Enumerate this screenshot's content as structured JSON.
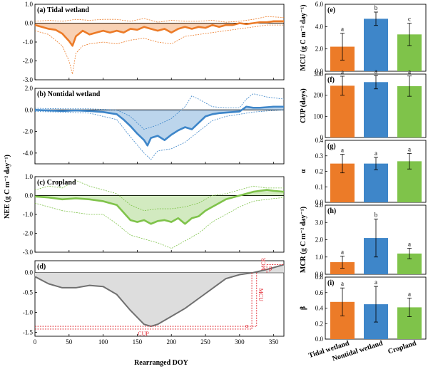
{
  "figure": {
    "y_axis_label_left": "NEE (g C m⁻² day⁻¹)",
    "x_axis_label_left": "Rearranged DOY",
    "left_x_ticks": [
      "0",
      "50",
      "100",
      "150",
      "200",
      "250",
      "300",
      "350"
    ]
  },
  "chart_data": [
    {
      "type": "line",
      "panel": "(a)",
      "title": "Tidal wetland",
      "color": "#ec7b28",
      "ylim": [
        -3.0,
        1.0
      ],
      "yticks": [
        "1.0",
        "0.0",
        "-1.0",
        "-2.0",
        "-3.0"
      ],
      "xlim": [
        0,
        365
      ],
      "series": [
        {
          "values_kind": "mean",
          "x": [
            0,
            10,
            20,
            30,
            40,
            50,
            55,
            60,
            65,
            70,
            80,
            90,
            100,
            110,
            120,
            130,
            140,
            150,
            160,
            170,
            180,
            190,
            200,
            210,
            220,
            230,
            240,
            250,
            260,
            270,
            280,
            290,
            300,
            310,
            320,
            330,
            340,
            350,
            365
          ],
          "y": [
            -0.1,
            -0.2,
            -0.3,
            -0.35,
            -0.55,
            -0.95,
            -1.2,
            -0.7,
            -0.55,
            -0.4,
            -0.6,
            -0.5,
            -0.4,
            -0.5,
            -0.4,
            -0.5,
            -0.3,
            -0.35,
            -0.2,
            -0.3,
            -0.4,
            -0.3,
            -0.5,
            -0.3,
            -0.2,
            -0.3,
            -0.2,
            -0.25,
            -0.1,
            -0.2,
            -0.1,
            -0.1,
            0.0,
            -0.05,
            0.0,
            0.05,
            0.05,
            0.1,
            0.1
          ]
        },
        {
          "values_kind": "upper",
          "x": [
            0,
            20,
            40,
            60,
            80,
            100,
            120,
            140,
            160,
            180,
            200,
            220,
            240,
            260,
            280,
            300,
            320,
            340,
            365
          ],
          "y": [
            0.1,
            0.15,
            0.1,
            0.2,
            0.15,
            0.2,
            0.2,
            0.1,
            0.25,
            0.05,
            0.15,
            0.1,
            0.1,
            0.15,
            0.05,
            0.1,
            0.2,
            0.35,
            0.3
          ]
        },
        {
          "values_kind": "lower",
          "x": [
            0,
            20,
            40,
            50,
            55,
            60,
            70,
            80,
            100,
            120,
            140,
            160,
            180,
            200,
            220,
            240,
            260,
            280,
            300,
            320,
            340,
            365
          ],
          "y": [
            -0.4,
            -0.6,
            -1.2,
            -2.0,
            -2.7,
            -1.6,
            -1.2,
            -1.1,
            -1.0,
            -1.1,
            -0.9,
            -0.8,
            -1.0,
            -1.1,
            -0.7,
            -0.6,
            -0.5,
            -0.4,
            -0.3,
            -0.2,
            -0.1,
            -0.1
          ]
        }
      ]
    },
    {
      "type": "line",
      "panel": "(b)",
      "title": "Nontidal wetland",
      "color": "#3e86c9",
      "ylim": [
        -5.0,
        2.0
      ],
      "yticks": [
        "2.0",
        "0.0",
        "-2.0",
        "-4.0"
      ],
      "xlim": [
        0,
        365
      ],
      "series": [
        {
          "values_kind": "mean",
          "x": [
            0,
            20,
            40,
            60,
            80,
            100,
            120,
            130,
            140,
            150,
            160,
            165,
            170,
            180,
            190,
            200,
            210,
            220,
            230,
            240,
            250,
            260,
            270,
            280,
            290,
            300,
            310,
            320,
            330,
            340,
            350,
            365
          ],
          "y": [
            0.0,
            -0.05,
            -0.1,
            -0.05,
            -0.1,
            -0.2,
            -0.4,
            -0.9,
            -1.5,
            -2.2,
            -2.8,
            -3.3,
            -2.6,
            -2.4,
            -2.8,
            -2.3,
            -1.9,
            -1.6,
            -1.8,
            -1.2,
            -0.6,
            -0.4,
            -0.3,
            -0.25,
            -0.2,
            -0.15,
            0.3,
            0.2,
            0.2,
            0.25,
            0.3,
            0.3
          ]
        },
        {
          "values_kind": "upper",
          "x": [
            0,
            40,
            80,
            120,
            140,
            160,
            180,
            200,
            220,
            230,
            240,
            260,
            280,
            300,
            310,
            320,
            340,
            365
          ],
          "y": [
            0.15,
            0.1,
            0.1,
            0.0,
            -0.6,
            -1.8,
            -1.4,
            -0.8,
            0.3,
            1.3,
            1.0,
            0.3,
            0.2,
            0.2,
            1.0,
            1.5,
            1.2,
            1.0
          ]
        },
        {
          "values_kind": "lower",
          "x": [
            0,
            40,
            80,
            120,
            140,
            160,
            170,
            180,
            200,
            220,
            240,
            260,
            280,
            300,
            320,
            340,
            365
          ],
          "y": [
            -0.15,
            -0.2,
            -0.3,
            -0.9,
            -2.5,
            -4.0,
            -4.6,
            -3.8,
            -3.6,
            -3.0,
            -2.0,
            -1.0,
            -0.6,
            -0.4,
            -0.2,
            -0.1,
            0.0
          ]
        }
      ]
    },
    {
      "type": "line",
      "panel": "(c)",
      "title": "Cropland",
      "color": "#7fc34a",
      "ylim": [
        -3.0,
        1.0
      ],
      "yticks": [
        "1.0",
        "0.0",
        "-1.0",
        "-2.0",
        "-3.0"
      ],
      "xlim": [
        0,
        365
      ],
      "series": [
        {
          "values_kind": "mean",
          "x": [
            0,
            20,
            40,
            60,
            80,
            100,
            120,
            130,
            140,
            150,
            160,
            170,
            180,
            190,
            200,
            210,
            220,
            230,
            240,
            250,
            260,
            270,
            280,
            290,
            300,
            310,
            320,
            340,
            350,
            365
          ],
          "y": [
            -0.05,
            -0.1,
            -0.2,
            -0.15,
            -0.2,
            -0.3,
            -0.5,
            -0.9,
            -1.3,
            -1.4,
            -1.3,
            -1.5,
            -1.35,
            -1.3,
            -1.4,
            -1.2,
            -1.5,
            -1.2,
            -1.1,
            -0.8,
            -0.6,
            -0.4,
            -0.2,
            -0.1,
            0.0,
            0.1,
            0.2,
            0.3,
            0.25,
            0.2
          ]
        },
        {
          "values_kind": "upper",
          "x": [
            0,
            20,
            40,
            60,
            80,
            100,
            120,
            140,
            160,
            180,
            200,
            220,
            240,
            260,
            280,
            300,
            320,
            340,
            365
          ],
          "y": [
            0.3,
            0.5,
            0.4,
            0.8,
            0.5,
            0.3,
            0.1,
            -0.5,
            -0.8,
            -0.7,
            -0.7,
            -0.6,
            -0.4,
            0.0,
            0.1,
            0.3,
            0.5,
            0.4,
            0.4
          ]
        },
        {
          "values_kind": "lower",
          "x": [
            0,
            20,
            40,
            60,
            80,
            100,
            120,
            140,
            160,
            180,
            200,
            220,
            240,
            260,
            280,
            300,
            320,
            340,
            365
          ],
          "y": [
            -0.4,
            -0.6,
            -0.8,
            -0.9,
            -1.0,
            -1.0,
            -1.5,
            -2.1,
            -2.3,
            -2.5,
            -2.8,
            -2.4,
            -2.0,
            -1.4,
            -1.0,
            -0.6,
            -0.3,
            -0.2,
            -0.1
          ]
        }
      ]
    },
    {
      "type": "line",
      "panel": "(d)",
      "title": "",
      "color": "#707070",
      "ylim": [
        -1.6,
        0.3
      ],
      "yticks": [
        "0.0",
        "-0.5",
        "-1.0",
        "-1.5"
      ],
      "xlim": [
        0,
        365
      ],
      "xticks": [
        "0",
        "50",
        "100",
        "150",
        "200",
        "250",
        "300",
        "350"
      ],
      "annotations": [
        "MCR",
        "β",
        "MCU",
        "α",
        "CUP"
      ],
      "series": [
        {
          "values_kind": "mean",
          "x": [
            0,
            20,
            40,
            60,
            80,
            100,
            120,
            140,
            160,
            170,
            180,
            200,
            220,
            240,
            260,
            280,
            300,
            320,
            340,
            365
          ],
          "y": [
            -0.1,
            -0.28,
            -0.38,
            -0.38,
            -0.32,
            -0.35,
            -0.55,
            -0.95,
            -1.3,
            -1.35,
            -1.3,
            -1.1,
            -0.9,
            -0.65,
            -0.4,
            -0.15,
            -0.05,
            0.0,
            0.08,
            0.2
          ]
        }
      ]
    },
    {
      "type": "bar",
      "panel": "(e)",
      "ylabel": "MCU (g C m⁻² day⁻¹)",
      "categories": [
        "Tidal wetland",
        "Nontidal wetland",
        "Cropland"
      ],
      "values": [
        2.2,
        4.7,
        3.3
      ],
      "errors": [
        1.2,
        0.6,
        1.0
      ],
      "letters": [
        "a",
        "b",
        "c"
      ],
      "ylim": [
        0.0,
        6.0
      ],
      "yticks": [
        "0.0",
        "2.0",
        "4.0",
        "6.0"
      ]
    },
    {
      "type": "bar",
      "panel": "(f)",
      "ylabel": "CUP (days)",
      "categories": [
        "Tidal wetland",
        "Nontidal wetland",
        "Cropland"
      ],
      "values": [
        245,
        262,
        243
      ],
      "errors": [
        45,
        32,
        48
      ],
      "letters": [
        "a",
        "a",
        "a"
      ],
      "ylim": [
        0,
        300
      ],
      "yticks": [
        "0",
        "100",
        "200",
        "300"
      ]
    },
    {
      "type": "bar",
      "panel": "(g)",
      "ylabel": "α",
      "categories": [
        "Tidal wetland",
        "Nontidal wetland",
        "Cropland"
      ],
      "values": [
        0.25,
        0.25,
        0.265
      ],
      "errors": [
        0.06,
        0.04,
        0.05
      ],
      "letters": [
        "a",
        "a",
        "a"
      ],
      "ylim": [
        0.0,
        0.4
      ],
      "yticks": [
        "0.0",
        "0.1",
        "0.2",
        "0.3",
        "0.4"
      ]
    },
    {
      "type": "bar",
      "panel": "(h)",
      "ylabel": "MCR (g C m⁻² day⁻¹)",
      "categories": [
        "Tidal wetland",
        "Nontidal wetland",
        "Cropland"
      ],
      "values": [
        0.7,
        2.1,
        1.2
      ],
      "errors": [
        0.35,
        1.1,
        0.3
      ],
      "letters": [
        "a",
        "b",
        "a"
      ],
      "ylim": [
        0.0,
        4.0
      ],
      "yticks": [
        "0.0",
        "1.0",
        "2.0",
        "3.0",
        "4.0"
      ]
    },
    {
      "type": "bar",
      "panel": "(i)",
      "ylabel": "β",
      "categories": [
        "Tidal wetland",
        "Nontidal wetland",
        "Cropland"
      ],
      "values": [
        0.48,
        0.45,
        0.41
      ],
      "errors": [
        0.18,
        0.23,
        0.12
      ],
      "letters": [
        "a",
        "a",
        "a"
      ],
      "ylim": [
        0.0,
        0.8
      ],
      "yticks": [
        "0.0",
        "0.2",
        "0.4",
        "0.6",
        "0.8"
      ]
    }
  ],
  "colors": {
    "tidal": "#ec7b28",
    "nontidal": "#3e86c9",
    "cropland": "#7fc34a",
    "curve": "#707070",
    "annotation": "#e0202a"
  }
}
